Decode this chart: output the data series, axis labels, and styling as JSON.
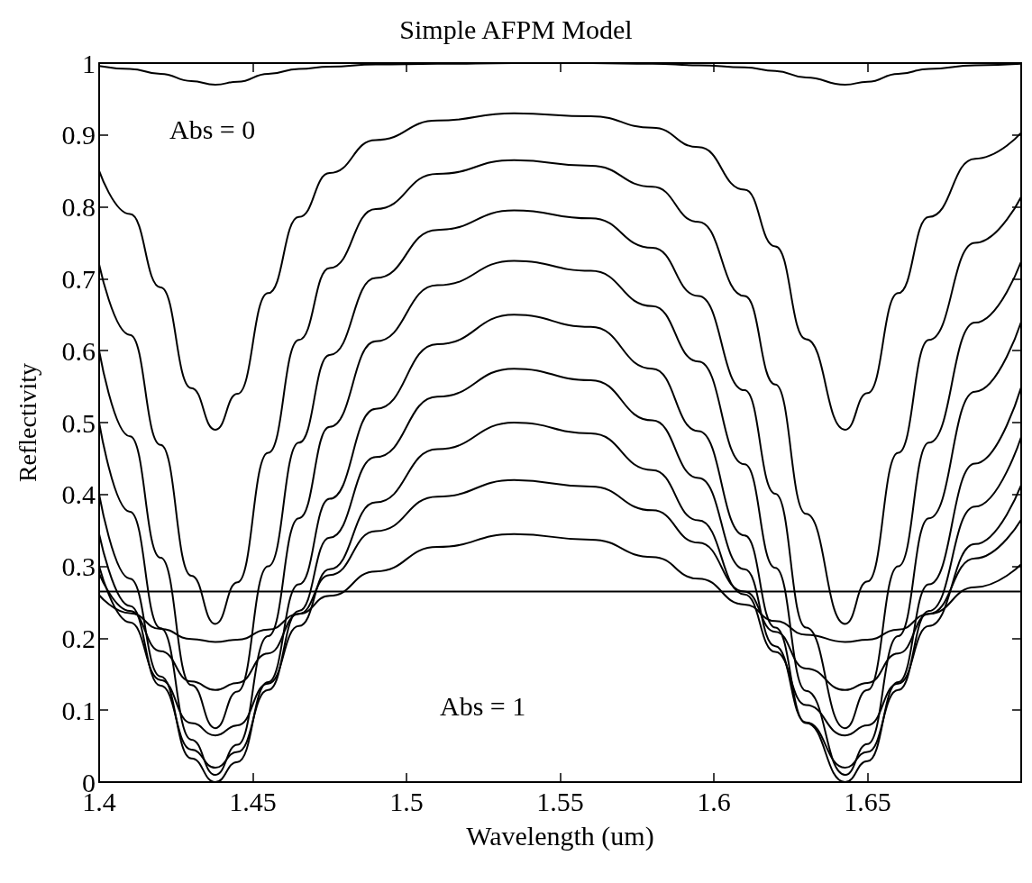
{
  "chart_data": {
    "type": "line",
    "title": "Simple AFPM Model",
    "xlabel": "Wavelength (um)",
    "ylabel": "Reflectivity",
    "x": [
      1.4,
      1.41,
      1.42,
      1.43,
      1.4378,
      1.445,
      1.455,
      1.465,
      1.475,
      1.49,
      1.51,
      1.535,
      1.56,
      1.58,
      1.595,
      1.61,
      1.62,
      1.63,
      1.6427,
      1.65,
      1.66,
      1.67,
      1.685,
      1.7
    ],
    "series": [
      {
        "color": "#000000",
        "values": [
          0.996,
          0.992,
          0.985,
          0.975,
          0.97,
          0.974,
          0.985,
          0.992,
          0.995,
          0.998,
          0.999,
          1.0,
          1.0,
          0.999,
          0.997,
          0.994,
          0.989,
          0.98,
          0.97,
          0.974,
          0.985,
          0.992,
          0.997,
          0.999
        ]
      },
      {
        "color": "#000000",
        "values": [
          0.85,
          0.79,
          0.688,
          0.548,
          0.49,
          0.54,
          0.68,
          0.786,
          0.847,
          0.893,
          0.92,
          0.93,
          0.926,
          0.91,
          0.883,
          0.824,
          0.745,
          0.616,
          0.49,
          0.541,
          0.68,
          0.786,
          0.867,
          0.903
        ]
      },
      {
        "color": "#000000",
        "values": [
          0.72,
          0.622,
          0.469,
          0.287,
          0.22,
          0.278,
          0.458,
          0.615,
          0.715,
          0.797,
          0.846,
          0.865,
          0.857,
          0.828,
          0.779,
          0.676,
          0.553,
          0.373,
          0.22,
          0.279,
          0.458,
          0.615,
          0.75,
          0.814
        ]
      },
      {
        "color": "#000000",
        "values": [
          0.6,
          0.481,
          0.312,
          0.135,
          0.075,
          0.126,
          0.3,
          0.472,
          0.594,
          0.701,
          0.768,
          0.795,
          0.784,
          0.743,
          0.676,
          0.545,
          0.401,
          0.215,
          0.075,
          0.128,
          0.3,
          0.472,
          0.639,
          0.724
        ]
      },
      {
        "color": "#000000",
        "values": [
          0.5,
          0.376,
          0.214,
          0.059,
          0.01,
          0.052,
          0.203,
          0.367,
          0.494,
          0.613,
          0.691,
          0.725,
          0.711,
          0.662,
          0.585,
          0.442,
          0.298,
          0.127,
          0.01,
          0.053,
          0.203,
          0.367,
          0.543,
          0.64
        ]
      },
      {
        "color": "#000000",
        "values": [
          0.4,
          0.283,
          0.147,
          0.033,
          0.0,
          0.028,
          0.139,
          0.275,
          0.394,
          0.519,
          0.609,
          0.65,
          0.633,
          0.575,
          0.488,
          0.343,
          0.215,
          0.082,
          0.0,
          0.029,
          0.139,
          0.275,
          0.443,
          0.549
        ]
      },
      {
        "color": "#000000",
        "values": [
          0.345,
          0.245,
          0.134,
          0.045,
          0.02,
          0.042,
          0.128,
          0.238,
          0.34,
          0.452,
          0.536,
          0.575,
          0.559,
          0.503,
          0.423,
          0.296,
          0.189,
          0.083,
          0.02,
          0.042,
          0.128,
          0.238,
          0.383,
          0.48
        ]
      },
      {
        "color": "#000000",
        "values": [
          0.3,
          0.222,
          0.142,
          0.082,
          0.065,
          0.079,
          0.137,
          0.217,
          0.296,
          0.389,
          0.463,
          0.5,
          0.485,
          0.434,
          0.364,
          0.261,
          0.181,
          0.107,
          0.065,
          0.079,
          0.137,
          0.217,
          0.331,
          0.413
        ]
      },
      {
        "color": "#000000",
        "values": [
          0.29,
          0.238,
          0.182,
          0.14,
          0.128,
          0.138,
          0.179,
          0.234,
          0.288,
          0.349,
          0.397,
          0.42,
          0.411,
          0.378,
          0.333,
          0.265,
          0.209,
          0.158,
          0.128,
          0.138,
          0.179,
          0.234,
          0.311,
          0.365
        ]
      },
      {
        "color": "#000000",
        "values": [
          0.26,
          0.235,
          0.213,
          0.199,
          0.195,
          0.198,
          0.212,
          0.234,
          0.259,
          0.293,
          0.327,
          0.345,
          0.337,
          0.313,
          0.283,
          0.247,
          0.224,
          0.205,
          0.195,
          0.198,
          0.212,
          0.234,
          0.271,
          0.303
        ]
      },
      {
        "color": "#000000",
        "values": [
          0.265,
          0.265,
          0.265,
          0.265,
          0.265,
          0.265,
          0.265,
          0.265,
          0.265,
          0.265,
          0.265,
          0.265,
          0.265,
          0.265,
          0.265,
          0.265,
          0.265,
          0.265,
          0.265,
          0.265,
          0.265,
          0.265,
          0.265,
          0.265
        ]
      }
    ],
    "xlim": [
      1.4,
      1.7
    ],
    "xticks": [
      1.4,
      1.45,
      1.5,
      1.55,
      1.6,
      1.65,
      {
        "value": 1.7,
        "label": null
      }
    ],
    "ylim": [
      0,
      1
    ],
    "yticks": [
      0,
      0.1,
      0.2,
      0.3,
      0.4,
      0.5,
      0.6,
      0.7,
      0.8,
      0.9,
      1
    ],
    "marker": "none",
    "annotations": [
      "Abs = 0",
      "Abs = 1"
    ]
  }
}
